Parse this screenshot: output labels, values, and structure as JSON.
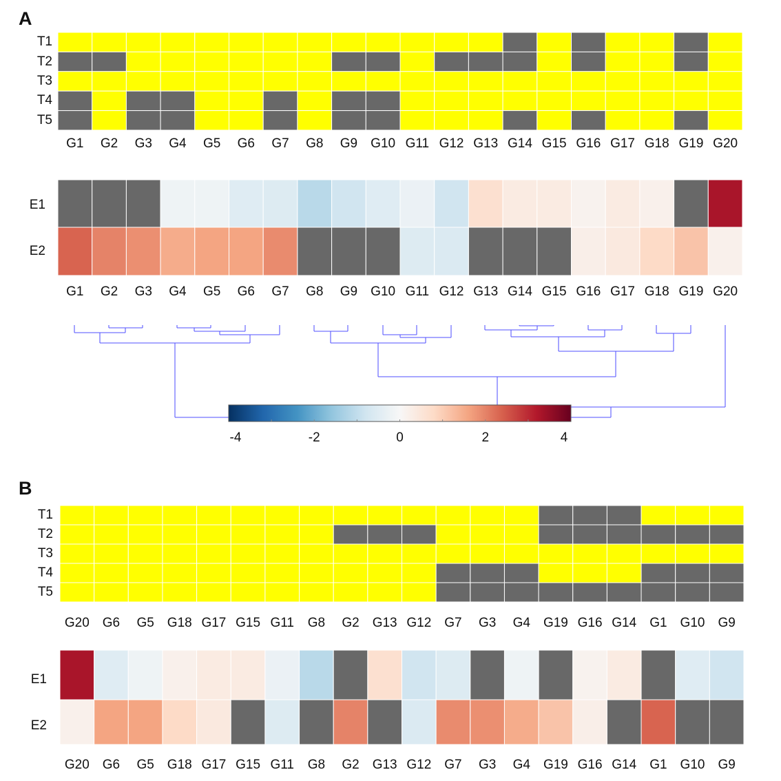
{
  "panels": {
    "a": "A",
    "b": "B"
  },
  "colors": {
    "present": "#ffff00",
    "missing": "#686868",
    "grid": "#ffffff",
    "dendrogram": "#5a5aff"
  },
  "chart_data": [
    {
      "type": "heatmap",
      "panel": "A",
      "rows": [
        "T1",
        "T2",
        "T3",
        "T4",
        "T5"
      ],
      "columns": [
        "G1",
        "G2",
        "G3",
        "G4",
        "G5",
        "G6",
        "G7",
        "G8",
        "G9",
        "G10",
        "G11",
        "G12",
        "G13",
        "G14",
        "G15",
        "G16",
        "G17",
        "G18",
        "G19",
        "G20"
      ],
      "values": [
        [
          1,
          1,
          1,
          1,
          1,
          1,
          1,
          1,
          1,
          1,
          1,
          1,
          1,
          0,
          1,
          0,
          1,
          1,
          0,
          1
        ],
        [
          0,
          0,
          1,
          1,
          1,
          1,
          1,
          1,
          0,
          0,
          1,
          0,
          0,
          0,
          1,
          0,
          1,
          1,
          0,
          1
        ],
        [
          1,
          1,
          1,
          1,
          1,
          1,
          1,
          1,
          1,
          1,
          1,
          1,
          1,
          1,
          1,
          1,
          1,
          1,
          1,
          1
        ],
        [
          0,
          1,
          0,
          0,
          1,
          1,
          0,
          1,
          0,
          0,
          1,
          1,
          1,
          1,
          1,
          1,
          1,
          1,
          1,
          1
        ],
        [
          0,
          1,
          0,
          0,
          1,
          1,
          0,
          1,
          0,
          0,
          1,
          1,
          1,
          0,
          1,
          0,
          1,
          1,
          0,
          1
        ]
      ],
      "legend": "1 = yellow, 0 = grey"
    },
    {
      "type": "heatmap",
      "panel": "A",
      "rows": [
        "E1",
        "E2"
      ],
      "columns": [
        "G1",
        "G2",
        "G3",
        "G4",
        "G5",
        "G6",
        "G7",
        "G8",
        "G9",
        "G10",
        "G11",
        "G12",
        "G13",
        "G14",
        "G15",
        "G16",
        "G17",
        "G18",
        "G19",
        "G20"
      ],
      "values": [
        [
          null,
          null,
          null,
          -0.2,
          -0.2,
          -0.5,
          -0.55,
          -1.1,
          -0.8,
          -0.5,
          -0.25,
          -0.8,
          0.65,
          0.35,
          0.35,
          0.15,
          0.35,
          0.2,
          null,
          3.3
        ],
        [
          2.35,
          2.0,
          1.85,
          1.5,
          1.6,
          1.6,
          1.9,
          null,
          null,
          null,
          -0.55,
          -0.6,
          null,
          null,
          null,
          0.25,
          0.4,
          0.8,
          1.15,
          0.2
        ]
      ],
      "colormap": "RdBu_r",
      "clim": [
        -4,
        4
      ],
      "colorbar_ticks": [
        -4,
        -2,
        0,
        2,
        4
      ],
      "colorbar_labels": [
        "-4",
        "-2",
        "0",
        "2",
        "4"
      ],
      "missing_color": "#686868",
      "dendrogram": true
    },
    {
      "type": "heatmap",
      "panel": "B",
      "rows": [
        "T1",
        "T2",
        "T3",
        "T4",
        "T5"
      ],
      "columns": [
        "G20",
        "G6",
        "G5",
        "G18",
        "G17",
        "G15",
        "G11",
        "G8",
        "G2",
        "G13",
        "G12",
        "G7",
        "G3",
        "G4",
        "G19",
        "G16",
        "G14",
        "G1",
        "G10",
        "G9"
      ]
    },
    {
      "type": "heatmap",
      "panel": "B",
      "rows": [
        "E1",
        "E2"
      ],
      "columns": [
        "G20",
        "G6",
        "G5",
        "G18",
        "G17",
        "G15",
        "G11",
        "G8",
        "G2",
        "G13",
        "G12",
        "G7",
        "G3",
        "G4",
        "G19",
        "G16",
        "G14",
        "G1",
        "G10",
        "G9"
      ]
    }
  ]
}
